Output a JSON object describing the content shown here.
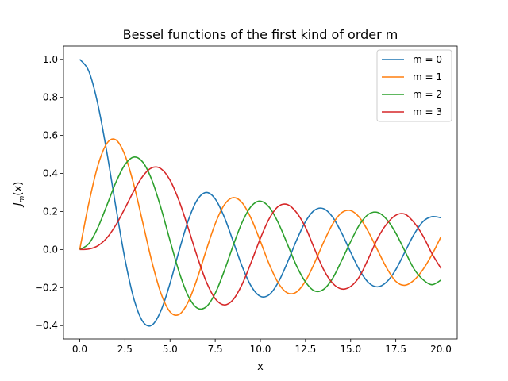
{
  "chart_data": {
    "type": "line",
    "title": "Bessel functions of the first kind of order m",
    "xlabel": "x",
    "ylabel_main": "J",
    "ylabel_sub": "m",
    "ylabel_arg": "(x)",
    "xlim": [
      -0.9,
      20.9
    ],
    "ylim": [
      -0.47,
      1.07
    ],
    "x_ticks": [
      0,
      2.5,
      5,
      7.5,
      10,
      12.5,
      15,
      17.5,
      20
    ],
    "x_tick_labels": [
      "0.0",
      "2.5",
      "5.0",
      "7.5",
      "10.0",
      "12.5",
      "15.0",
      "17.5",
      "20.0"
    ],
    "y_ticks": [
      -0.4,
      -0.2,
      0,
      0.2,
      0.4,
      0.6,
      0.8,
      1.0
    ],
    "y_tick_labels": [
      "−0.4",
      "−0.2",
      "0.0",
      "0.2",
      "0.4",
      "0.6",
      "0.8",
      "1.0"
    ],
    "grid": false,
    "legend_position": "top-right",
    "x": [
      0,
      0.5,
      1,
      1.5,
      2,
      2.5,
      3,
      3.5,
      4,
      4.5,
      5,
      5.5,
      6,
      6.5,
      7,
      7.5,
      8,
      8.5,
      9,
      9.5,
      10,
      10.5,
      11,
      11.5,
      12,
      12.5,
      13,
      13.5,
      14,
      14.5,
      15,
      15.5,
      16,
      16.5,
      17,
      17.5,
      18,
      18.5,
      19,
      19.5,
      20
    ],
    "series": [
      {
        "name": "m = 0",
        "color": "#1f77b4",
        "values": [
          1.0,
          0.9385,
          0.7652,
          0.5118,
          0.2239,
          -0.0484,
          -0.2601,
          -0.3801,
          -0.3971,
          -0.3205,
          -0.1776,
          -0.0068,
          0.1506,
          0.2601,
          0.3001,
          0.2663,
          0.1717,
          0.0419,
          -0.0903,
          -0.1939,
          -0.2459,
          -0.2366,
          -0.1712,
          -0.0677,
          0.0477,
          0.1469,
          0.2069,
          0.215,
          0.1711,
          0.0875,
          -0.0142,
          -0.1092,
          -0.1749,
          -0.196,
          -0.1699,
          -0.1055,
          -0.0134,
          0.0786,
          0.1466,
          0.173,
          0.167
        ]
      },
      {
        "name": "m = 1",
        "color": "#ff7f0e",
        "values": [
          0.0,
          0.2423,
          0.4401,
          0.5579,
          0.5767,
          0.4971,
          0.3391,
          0.1374,
          -0.066,
          -0.2311,
          -0.3276,
          -0.3414,
          -0.2767,
          -0.1538,
          -0.0047,
          0.1352,
          0.2346,
          0.2731,
          0.2453,
          0.1613,
          0.0435,
          -0.0789,
          -0.1768,
          -0.2284,
          -0.2234,
          -0.1655,
          -0.0703,
          0.038,
          0.1334,
          0.1934,
          0.2051,
          0.1672,
          0.0904,
          -0.0047,
          -0.0977,
          -0.1672,
          -0.188,
          -0.1618,
          -0.1057,
          -0.0271,
          0.0668
        ]
      },
      {
        "name": "m = 2",
        "color": "#2ca02c",
        "values": [
          0.0,
          0.0306,
          0.1149,
          0.2321,
          0.3528,
          0.4461,
          0.4861,
          0.4586,
          0.3641,
          0.2178,
          0.0466,
          -0.1173,
          -0.2429,
          -0.3074,
          -0.3014,
          -0.2303,
          -0.113,
          0.0223,
          0.1448,
          0.2279,
          0.2546,
          0.2216,
          0.1391,
          0.028,
          -0.0849,
          -0.1704,
          -0.2177,
          -0.2094,
          -0.152,
          -0.0582,
          0.0416,
          0.1323,
          0.1862,
          0.1951,
          0.1584,
          0.0864,
          -0.0075,
          -0.1006,
          -0.1578,
          -0.1849,
          -0.1603
        ]
      },
      {
        "name": "m = 3",
        "color": "#d62728",
        "values": [
          0.0,
          0.0026,
          0.0196,
          0.061,
          0.1289,
          0.2166,
          0.3091,
          0.3868,
          0.4302,
          0.4247,
          0.3648,
          0.2561,
          0.1148,
          -0.0353,
          -0.1676,
          -0.2581,
          -0.2911,
          -0.2626,
          -0.1809,
          -0.0652,
          0.0584,
          0.1637,
          0.2273,
          0.2368,
          0.1951,
          0.1164,
          0.0033,
          -0.1047,
          -0.1768,
          -0.2074,
          -0.194,
          -0.1404,
          -0.0438,
          0.0599,
          0.1349,
          0.1804,
          0.1863,
          0.1433,
          0.0725,
          -0.021,
          -0.0989
        ]
      }
    ]
  }
}
